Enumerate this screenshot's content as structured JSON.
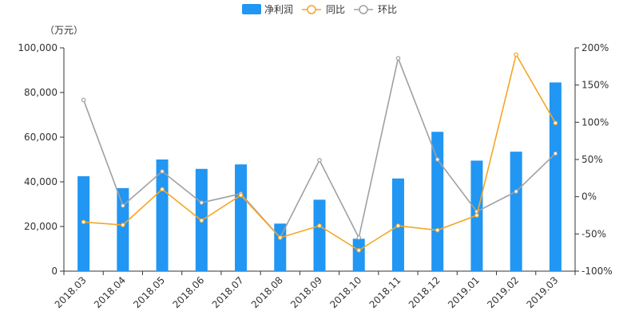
{
  "chart_data": {
    "type": "bar",
    "unit_label": "（万元）",
    "categories": [
      "2018.03",
      "2018.04",
      "2018.05",
      "2018.06",
      "2018.07",
      "2018.08",
      "2018.09",
      "2018.10",
      "2018.11",
      "2018.12",
      "2019.01",
      "2019.02",
      "2019.03"
    ],
    "series": [
      {
        "name": "净利润",
        "type": "bar",
        "axis": "left",
        "color": "#2196f3",
        "values": [
          42500,
          37200,
          50000,
          45800,
          47800,
          21300,
          32000,
          14500,
          41500,
          62400,
          49500,
          53500,
          84500
        ]
      },
      {
        "name": "同比",
        "type": "line",
        "axis": "right",
        "color": "#f5a623",
        "values": [
          -34,
          -38,
          10,
          -32,
          2,
          -55,
          -39,
          -72,
          -39,
          -45,
          -25,
          191,
          99
        ]
      },
      {
        "name": "环比",
        "type": "line",
        "axis": "right",
        "color": "#a0a0a0",
        "values": [
          130,
          -12,
          34,
          -8,
          4,
          -55,
          49,
          -55,
          186,
          50,
          -20,
          7,
          58
        ]
      }
    ],
    "left_axis": {
      "min": 0,
      "max": 100000,
      "ticks": [
        "0",
        "20,000",
        "40,000",
        "60,000",
        "80,000",
        "100,000"
      ]
    },
    "right_axis": {
      "min": -100,
      "max": 200,
      "ticks": [
        "-100%",
        "-50%",
        "0%",
        "50%",
        "100%",
        "150%",
        "200%"
      ]
    },
    "legend_position": "top-center"
  }
}
